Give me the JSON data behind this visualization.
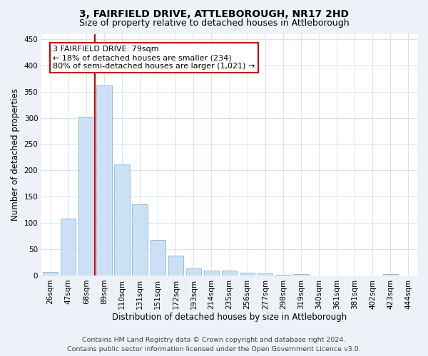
{
  "title": "3, FAIRFIELD DRIVE, ATTLEBOROUGH, NR17 2HD",
  "subtitle": "Size of property relative to detached houses in Attleborough",
  "xlabel": "Distribution of detached houses by size in Attleborough",
  "ylabel": "Number of detached properties",
  "categories": [
    "26sqm",
    "47sqm",
    "68sqm",
    "89sqm",
    "110sqm",
    "131sqm",
    "151sqm",
    "172sqm",
    "193sqm",
    "214sqm",
    "235sqm",
    "256sqm",
    "277sqm",
    "298sqm",
    "319sqm",
    "340sqm",
    "361sqm",
    "381sqm",
    "402sqm",
    "423sqm",
    "444sqm"
  ],
  "values": [
    7,
    108,
    302,
    362,
    212,
    136,
    68,
    38,
    13,
    10,
    9,
    6,
    4,
    1,
    3,
    0,
    0,
    0,
    0,
    3,
    0
  ],
  "bar_color": "#cce0f5",
  "bar_edge_color": "#8ab4d8",
  "vline_x_idx": 2.5,
  "vline_color": "#cc0000",
  "annotation_text": "3 FAIRFIELD DRIVE: 79sqm\n← 18% of detached houses are smaller (234)\n80% of semi-detached houses are larger (1,021) →",
  "annotation_box_color": "white",
  "annotation_box_edge_color": "#cc0000",
  "ylim": [
    0,
    460
  ],
  "yticks": [
    0,
    50,
    100,
    150,
    200,
    250,
    300,
    350,
    400,
    450
  ],
  "footer_line1": "Contains HM Land Registry data © Crown copyright and database right 2024.",
  "footer_line2": "Contains public sector information licensed under the Open Government Licence v3.0.",
  "bg_color": "#eef2f8",
  "plot_bg_color": "#ffffff",
  "grid_color": "#c8d8eb",
  "title_fontsize": 10,
  "subtitle_fontsize": 9,
  "axis_label_fontsize": 8.5,
  "tick_fontsize": 7.5,
  "annotation_fontsize": 8,
  "footer_fontsize": 6.8
}
